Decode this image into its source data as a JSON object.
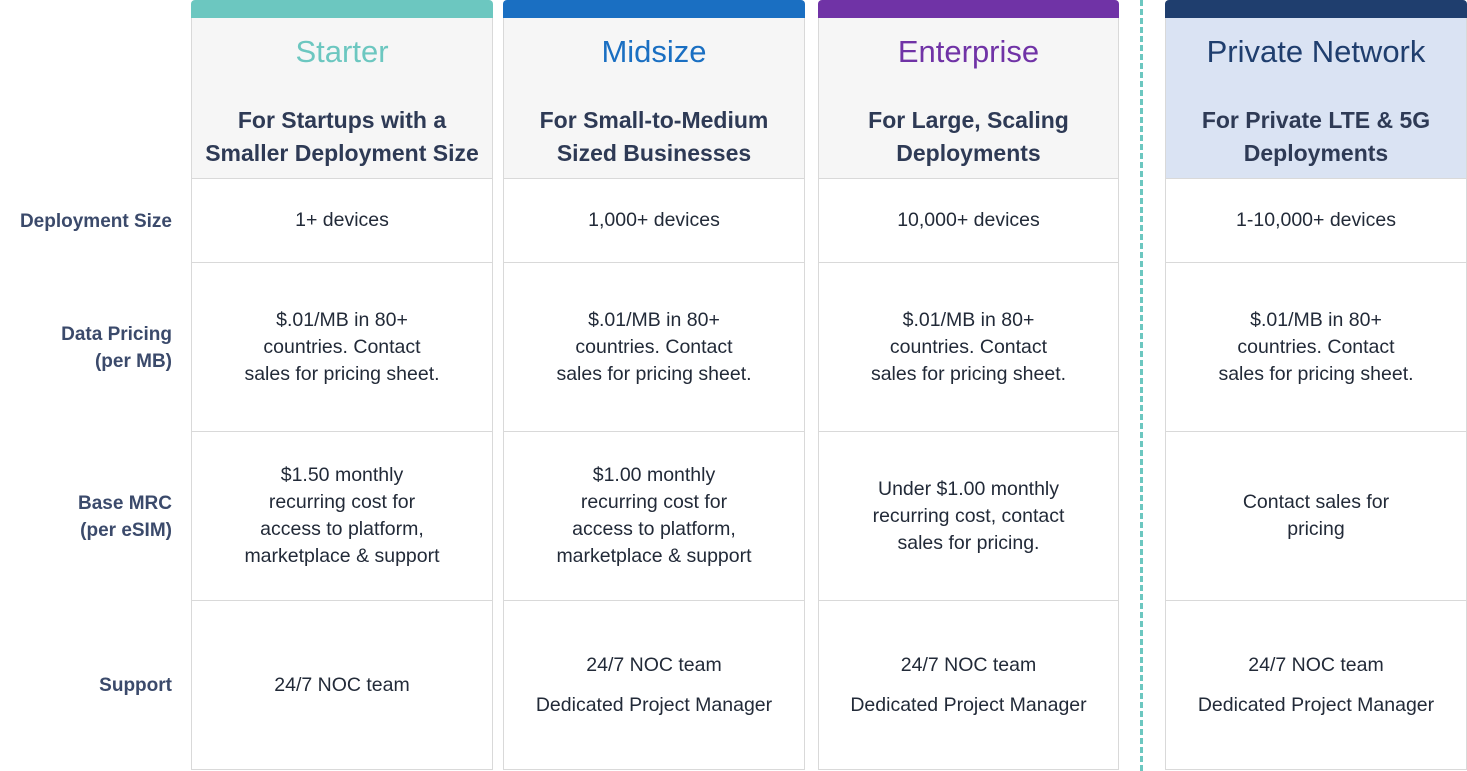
{
  "rows": {
    "deployment_size": "Deployment Size",
    "data_pricing": "Data Pricing\n(per MB)",
    "base_mrc": "Base MRC\n(per eSIM)",
    "support": "Support"
  },
  "plans": [
    {
      "name": "Starter",
      "color": "#6cc7c0",
      "tagline": "For Startups with a\nSmaller Deployment Size",
      "deployment_size": "1+ devices",
      "data_pricing": "$.01/MB in 80+\ncountries. Contact\nsales for pricing sheet.",
      "base_mrc": "$1.50 monthly\nrecurring cost for\naccess to platform,\nmarketplace & support",
      "support": [
        "24/7 NOC team"
      ]
    },
    {
      "name": "Midsize",
      "color": "#1a6fc2",
      "tagline": "For Small-to-Medium\nSized Businesses",
      "deployment_size": "1,000+ devices",
      "data_pricing": "$.01/MB in 80+\ncountries. Contact\nsales for pricing sheet.",
      "base_mrc": "$1.00 monthly\nrecurring cost for\naccess to platform,\nmarketplace & support",
      "support": [
        "24/7 NOC team",
        "Dedicated Project Manager"
      ]
    },
    {
      "name": "Enterprise",
      "color": "#7033a6",
      "tagline": "For Large, Scaling\nDeployments",
      "deployment_size": "10,000+ devices",
      "data_pricing": "$.01/MB in 80+\ncountries. Contact\nsales for pricing sheet.",
      "base_mrc": "Under $1.00 monthly\nrecurring cost, contact\nsales for pricing.",
      "support": [
        "24/7 NOC team",
        "Dedicated Project Manager"
      ]
    },
    {
      "name": "Private Network",
      "color": "#1f3e6e",
      "tagline": "For Private LTE & 5G\nDeployments",
      "deployment_size": "1-10,000+ devices",
      "data_pricing": "$.01/MB in 80+\ncountries. Contact\nsales for pricing sheet.",
      "base_mrc": "Contact sales for\npricing",
      "support": [
        "24/7 NOC team",
        "Dedicated Project Manager"
      ]
    }
  ]
}
